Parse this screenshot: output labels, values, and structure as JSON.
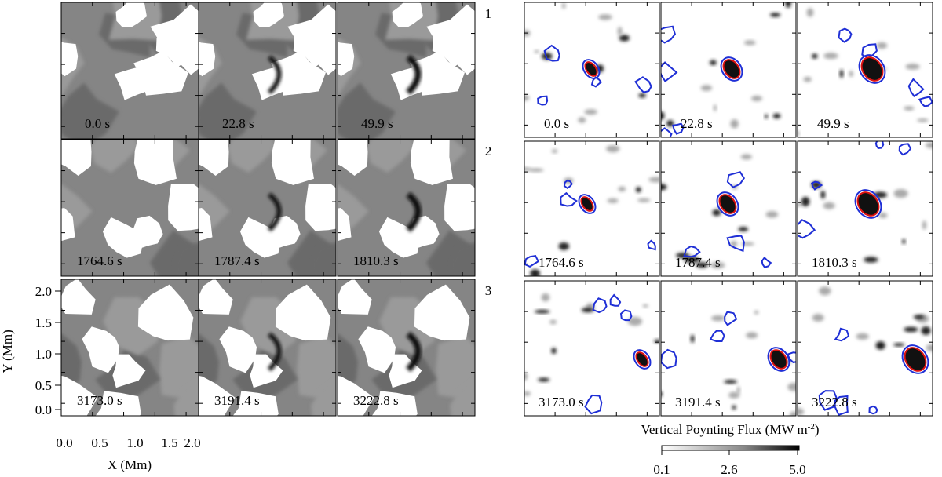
{
  "left_panels": {
    "rows": [
      {
        "label": "1",
        "times": [
          "0.0 s",
          "22.8 s",
          "49.9 s"
        ]
      },
      {
        "label": "2",
        "times": [
          "1764.6 s",
          "1787.4 s",
          "1810.3 s"
        ]
      },
      {
        "label": "3",
        "times": [
          "3173.0 s",
          "3191.4 s",
          "3222.8 s"
        ]
      }
    ]
  },
  "right_panels": {
    "rows": [
      {
        "times": [
          "0.0 s",
          "22.8 s",
          "49.9 s"
        ]
      },
      {
        "times": [
          "1764.6 s",
          "1787.4 s",
          "1810.3 s"
        ]
      },
      {
        "times": [
          "3173.0 s",
          "3191.4 s",
          "3222.8 s"
        ]
      }
    ]
  },
  "axes": {
    "x_label": "X (Mm)",
    "y_label": "Y (Mm)",
    "x_ticks": [
      "0.0",
      "0.5",
      "1.0",
      "1.5",
      "2.0"
    ],
    "y_ticks": [
      "2.0",
      "1.5",
      "1.0",
      "0.5",
      "0.0"
    ]
  },
  "colorbar": {
    "label": "Vertical Poynting Flux (MW m",
    "label_exponent": "-2",
    "label_end": ")",
    "ticks": [
      "0.1",
      "2.6",
      "5.0"
    ]
  }
}
